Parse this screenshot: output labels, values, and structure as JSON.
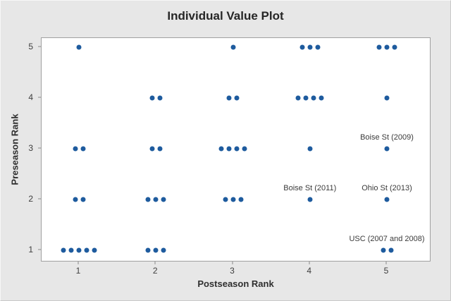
{
  "chart_data": {
    "type": "scatter",
    "variant": "individual-value-plot",
    "title": "Individual Value Plot",
    "xlabel": "Postseason Rank",
    "ylabel": "Preseason Rank",
    "x_ticks": [
      "1",
      "2",
      "3",
      "4",
      "5"
    ],
    "y_ticks": [
      "1",
      "2",
      "3",
      "4",
      "5"
    ],
    "xlim": [
      0.5,
      5.6
    ],
    "ylim": [
      0.75,
      5.2
    ],
    "grid": false,
    "legend": false,
    "point_color": "#1e5b9e",
    "background_color": "#e7e7e7",
    "plot_background_color": "#ffffff",
    "points": [
      {
        "x": 1,
        "y": 5,
        "count": 1
      },
      {
        "x": 3,
        "y": 5,
        "count": 1
      },
      {
        "x": 4,
        "y": 5,
        "count": 3
      },
      {
        "x": 5,
        "y": 5,
        "count": 3
      },
      {
        "x": 2,
        "y": 4,
        "count": 2
      },
      {
        "x": 3,
        "y": 4,
        "count": 2
      },
      {
        "x": 4,
        "y": 4,
        "count": 4
      },
      {
        "x": 5,
        "y": 4,
        "count": 1
      },
      {
        "x": 1,
        "y": 3,
        "count": 2
      },
      {
        "x": 2,
        "y": 3,
        "count": 2
      },
      {
        "x": 3,
        "y": 3,
        "count": 4
      },
      {
        "x": 4,
        "y": 3,
        "count": 1
      },
      {
        "x": 5,
        "y": 3,
        "count": 1
      },
      {
        "x": 1,
        "y": 2,
        "count": 2
      },
      {
        "x": 2,
        "y": 2,
        "count": 3
      },
      {
        "x": 3,
        "y": 2,
        "count": 3
      },
      {
        "x": 4,
        "y": 2,
        "count": 1
      },
      {
        "x": 5,
        "y": 2,
        "count": 1
      },
      {
        "x": 1,
        "y": 1,
        "count": 5
      },
      {
        "x": 2,
        "y": 1,
        "count": 3
      },
      {
        "x": 5,
        "y": 1,
        "count": 2
      }
    ],
    "annotations": [
      {
        "label": "Boise St (2009)",
        "x": 5,
        "y": 3
      },
      {
        "label": "Boise St (2011)",
        "x": 4,
        "y": 2
      },
      {
        "label": "Ohio St (2013)",
        "x": 5,
        "y": 2
      },
      {
        "label": "USC (2007 and 2008)",
        "x": 5,
        "y": 1
      }
    ]
  }
}
